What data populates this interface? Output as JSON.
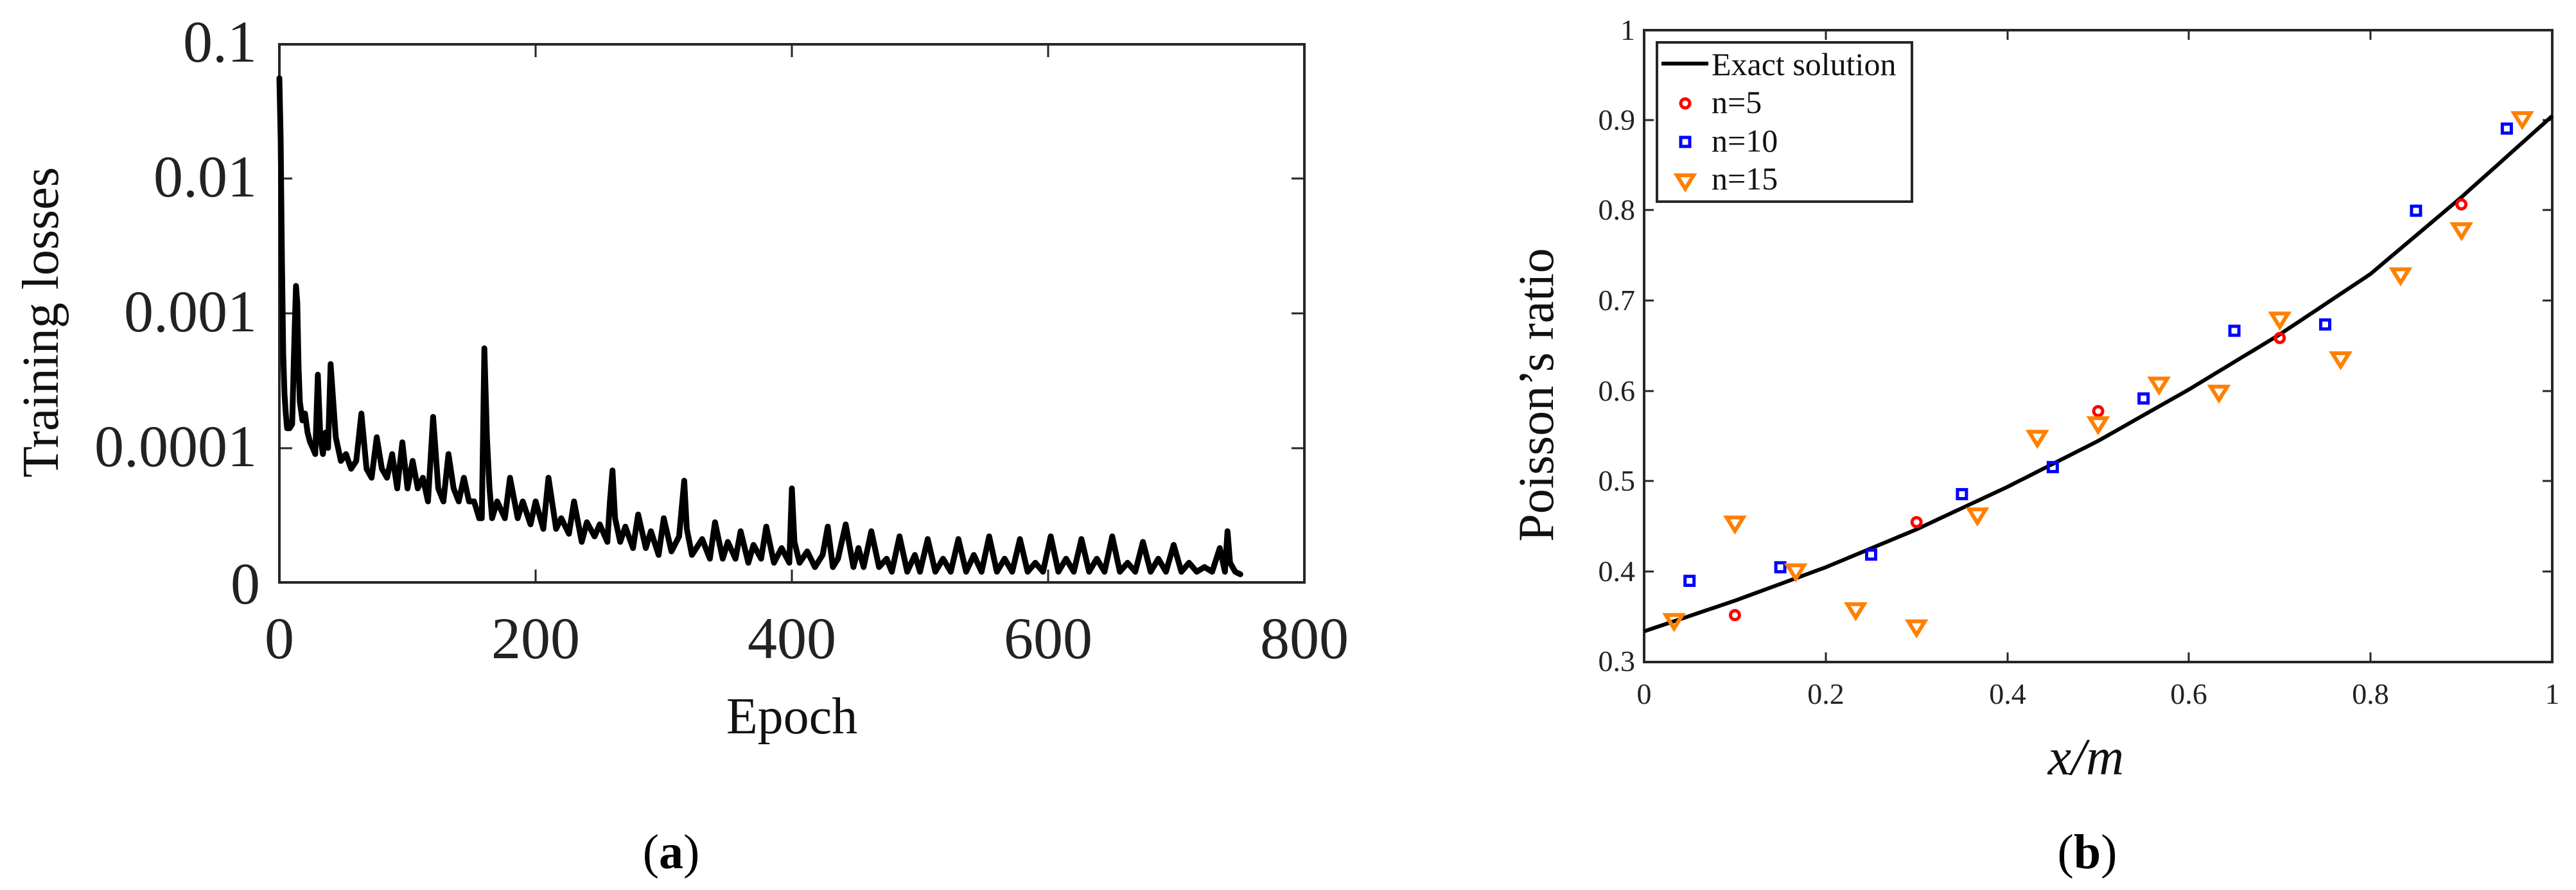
{
  "chart_data": [
    {
      "panel": "a",
      "type": "line",
      "title": "",
      "xlabel": "Epoch",
      "ylabel": "Training losses",
      "caption": "(a)",
      "yscale": "log",
      "xlim": [
        0,
        800
      ],
      "ylim": [
        1e-05,
        0.1
      ],
      "xticks": [
        0,
        200,
        400,
        600,
        800
      ],
      "xtick_labels": [
        "0",
        "200",
        "400",
        "600",
        "800"
      ],
      "yticks": [
        0.1,
        0.01,
        0.001,
        0.0001,
        1e-05
      ],
      "ytick_labels": [
        "0.1",
        "0.01",
        "0.001",
        "0.0001",
        "0"
      ],
      "grid": false,
      "legend": null,
      "series": [
        {
          "name": "Training loss",
          "color": "#000000",
          "x": [
            0,
            1,
            2,
            3,
            4,
            5,
            6,
            7,
            8,
            10,
            12,
            13,
            14,
            15,
            16,
            18,
            20,
            22,
            24,
            26,
            28,
            30,
            32,
            34,
            36,
            38,
            40,
            44,
            48,
            52,
            56,
            60,
            64,
            68,
            72,
            76,
            80,
            84,
            88,
            92,
            96,
            100,
            104,
            108,
            112,
            116,
            120,
            124,
            128,
            132,
            136,
            140,
            144,
            148,
            152,
            156,
            158,
            160,
            162,
            164,
            166,
            170,
            176,
            180,
            186,
            190,
            196,
            200,
            206,
            210,
            216,
            220,
            226,
            230,
            236,
            240,
            246,
            250,
            256,
            258,
            260,
            262,
            266,
            270,
            276,
            280,
            286,
            290,
            296,
            300,
            306,
            312,
            316,
            318,
            322,
            330,
            336,
            340,
            346,
            350,
            356,
            360,
            366,
            370,
            376,
            380,
            386,
            392,
            398,
            400,
            402,
            406,
            412,
            418,
            424,
            428,
            432,
            436,
            442,
            448,
            452,
            456,
            462,
            468,
            474,
            478,
            484,
            490,
            496,
            500,
            506,
            512,
            518,
            524,
            530,
            536,
            542,
            548,
            554,
            560,
            566,
            572,
            578,
            584,
            590,
            596,
            602,
            608,
            614,
            620,
            626,
            632,
            638,
            644,
            650,
            656,
            662,
            668,
            674,
            680,
            686,
            692,
            698,
            704,
            710,
            716,
            722,
            728,
            734,
            738,
            740,
            742,
            746,
            750
          ],
          "y": [
            0.056,
            0.02,
            0.0025,
            0.0005,
            0.00025,
            0.00018,
            0.00014,
            0.00014,
            0.00014,
            0.00015,
            0.0008,
            0.0016,
            0.0012,
            0.0004,
            0.00022,
            0.00016,
            0.00018,
            0.00013,
            0.00011,
            0.0001,
            9e-05,
            0.00035,
            0.00012,
            9e-05,
            0.00013,
            0.0001,
            0.00042,
            0.00012,
            8e-05,
            9e-05,
            7e-05,
            8e-05,
            0.00018,
            7e-05,
            6e-05,
            0.00012,
            7e-05,
            6e-05,
            9e-05,
            5e-05,
            0.00011,
            5e-05,
            8e-05,
            5e-05,
            6e-05,
            4e-05,
            0.00017,
            5e-05,
            4e-05,
            9e-05,
            5e-05,
            4e-05,
            6e-05,
            4e-05,
            4e-05,
            3e-05,
            3e-05,
            0.00055,
            0.00012,
            5e-05,
            3e-05,
            4e-05,
            3e-05,
            6e-05,
            3e-05,
            4e-05,
            2.7e-05,
            4e-05,
            2.5e-05,
            6e-05,
            2.5e-05,
            3e-05,
            2.3e-05,
            4e-05,
            2e-05,
            2.8e-05,
            2.2e-05,
            2.7e-05,
            2e-05,
            4e-05,
            6.8e-05,
            3e-05,
            2e-05,
            2.6e-05,
            1.8e-05,
            3.2e-05,
            1.8e-05,
            2.4e-05,
            1.6e-05,
            3e-05,
            1.7e-05,
            2.2e-05,
            5.7e-05,
            2.5e-05,
            1.6e-05,
            2.1e-05,
            1.5e-05,
            2.8e-05,
            1.5e-05,
            2e-05,
            1.5e-05,
            2.4e-05,
            1.4e-05,
            1.9e-05,
            1.5e-05,
            2.6e-05,
            1.4e-05,
            1.8e-05,
            1.4e-05,
            5e-05,
            2e-05,
            1.4e-05,
            1.7e-05,
            1.3e-05,
            1.6e-05,
            2.6e-05,
            1.3e-05,
            1.5e-05,
            2.7e-05,
            1.3e-05,
            1.8e-05,
            1.3e-05,
            2.4e-05,
            1.3e-05,
            1.5e-05,
            1.2e-05,
            2.2e-05,
            1.2e-05,
            1.6e-05,
            1.2e-05,
            2.1e-05,
            1.2e-05,
            1.5e-05,
            1.2e-05,
            2.1e-05,
            1.2e-05,
            1.6e-05,
            1.2e-05,
            2.2e-05,
            1.2e-05,
            1.5e-05,
            1.2e-05,
            2.1e-05,
            1.2e-05,
            1.4e-05,
            1.2e-05,
            2.2e-05,
            1.2e-05,
            1.5e-05,
            1.2e-05,
            2.1e-05,
            1.2e-05,
            1.5e-05,
            1.2e-05,
            2.2e-05,
            1.2e-05,
            1.4e-05,
            1.2e-05,
            2e-05,
            1.2e-05,
            1.5e-05,
            1.2e-05,
            1.9e-05,
            1.2e-05,
            1.4e-05,
            1.2e-05,
            1.3e-05,
            1.2e-05,
            1.8e-05,
            1.2e-05,
            2.4e-05,
            1.4e-05,
            1.2e-05,
            1.15e-05
          ]
        }
      ]
    },
    {
      "panel": "b",
      "type": "scatter",
      "title": "",
      "xlabel": "x/m",
      "ylabel": "Poisson’s ratio",
      "caption": "(b)",
      "xlim": [
        0,
        1
      ],
      "ylim": [
        0.3,
        1
      ],
      "xticks": [
        0,
        0.2,
        0.4,
        0.6,
        0.8,
        1
      ],
      "xtick_labels": [
        "0",
        "0.2",
        "0.4",
        "0.6",
        "0.8",
        "1"
      ],
      "yticks": [
        0.3,
        0.4,
        0.5,
        0.6,
        0.7,
        0.8,
        0.9,
        1
      ],
      "ytick_labels": [
        "0.3",
        "0.4",
        "0.5",
        "0.6",
        "0.7",
        "0.8",
        "0.9",
        "1"
      ],
      "grid": false,
      "legend_position": "upper left",
      "series": [
        {
          "name": "Exact solution",
          "kind": "line",
          "color": "#000000",
          "x": [
            0,
            0.1,
            0.2,
            0.3,
            0.4,
            0.5,
            0.6,
            0.7,
            0.8,
            0.9,
            1.0
          ],
          "y": [
            0.334,
            0.368,
            0.405,
            0.447,
            0.494,
            0.545,
            0.602,
            0.663,
            0.73,
            0.815,
            0.905
          ]
        },
        {
          "name": "n=5",
          "kind": "marker",
          "marker": "circle",
          "color": "#ff0000",
          "x": [
            0.1,
            0.3,
            0.5,
            0.7,
            0.9
          ],
          "y": [
            0.352,
            0.455,
            0.578,
            0.659,
            0.807
          ]
        },
        {
          "name": "n=10",
          "kind": "marker",
          "marker": "square",
          "color": "#0000ff",
          "x": [
            0.05,
            0.15,
            0.25,
            0.35,
            0.45,
            0.55,
            0.65,
            0.75,
            0.85,
            0.95
          ],
          "y": [
            0.39,
            0.405,
            0.419,
            0.486,
            0.516,
            0.592,
            0.667,
            0.674,
            0.8,
            0.891
          ]
        },
        {
          "name": "n=15",
          "kind": "marker",
          "marker": "triangle-down",
          "color": "#ff8000",
          "x": [
            0.033,
            0.1,
            0.167,
            0.233,
            0.3,
            0.367,
            0.433,
            0.5,
            0.567,
            0.633,
            0.7,
            0.767,
            0.833,
            0.9,
            0.967
          ],
          "y": [
            0.345,
            0.453,
            0.4,
            0.357,
            0.338,
            0.462,
            0.548,
            0.563,
            0.607,
            0.598,
            0.679,
            0.635,
            0.728,
            0.778,
            0.901
          ]
        }
      ]
    }
  ],
  "panel_a": {
    "ytick_labels": [
      "0.1",
      "0.01",
      "0.001",
      "0.0001",
      "0"
    ],
    "xtick_labels": [
      "0",
      "200",
      "400",
      "600",
      "800"
    ],
    "xlabel": "Epoch",
    "ylabel": "Training losses",
    "caption_open": "(",
    "caption_letter": "a",
    "caption_close": ")"
  },
  "panel_b": {
    "ytick_labels": [
      "1",
      "0.9",
      "0.8",
      "0.7",
      "0.6",
      "0.5",
      "0.4",
      "0.3"
    ],
    "xtick_labels": [
      "0",
      "0.2",
      "0.4",
      "0.6",
      "0.8",
      "1"
    ],
    "xlabel": "x/m",
    "ylabel": "Poisson’s ratio",
    "legend": [
      "Exact solution",
      "n=5",
      "n=10",
      "n=15"
    ],
    "caption_open": "(",
    "caption_letter": "b",
    "caption_close": ")"
  },
  "colors": {
    "exact": "#000000",
    "n5": "#ff0000",
    "n10": "#0000ff",
    "n15": "#ff8000",
    "axis": "#262626"
  }
}
